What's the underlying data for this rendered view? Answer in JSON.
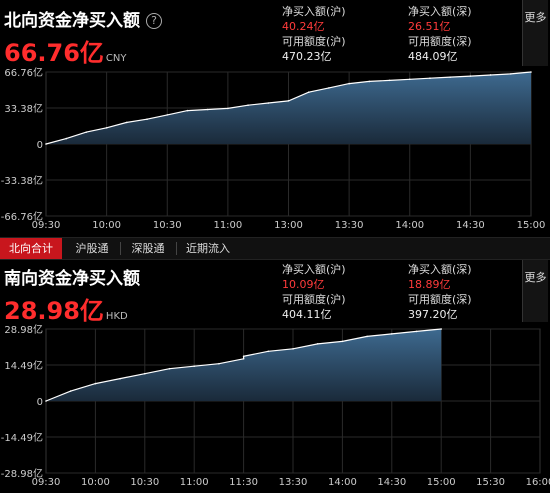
{
  "north": {
    "title": "北向资金净买入额",
    "value": "66.76亿",
    "currency": "CNY",
    "net_sh_label": "净买入额(沪)",
    "net_sh": "40.24亿",
    "net_sz_label": "净买入额(深)",
    "net_sz": "26.51亿",
    "avail_sh_label": "可用额度(沪)",
    "avail_sh": "470.23亿",
    "avail_sz_label": "可用额度(深)",
    "avail_sz": "484.09亿",
    "more": "更多"
  },
  "tabs": [
    "北向合计",
    "沪股通",
    "深股通",
    "近期流入"
  ],
  "south": {
    "title": "南向资金净买入额",
    "value": "28.98亿",
    "currency": "HKD",
    "net_sh_label": "净买入额(沪)",
    "net_sh": "10.09亿",
    "net_sz_label": "净买入额(深)",
    "net_sz": "18.89亿",
    "avail_sh_label": "可用额度(沪)",
    "avail_sh": "404.11亿",
    "avail_sz_label": "可用额度(深)",
    "avail_sz": "397.20亿",
    "more": "更多"
  },
  "colors": {
    "line": "#ffffff",
    "fill_top": "#3e6a90",
    "fill_bottom": "#1a2a3a",
    "grid": "#2a2a2a",
    "red": "#ff2d2d"
  },
  "chart_data": [
    {
      "type": "area",
      "ylim": [
        -66.76,
        66.76
      ],
      "yticks": [
        66.76,
        33.38,
        0,
        -33.38,
        -66.76
      ],
      "ytick_labels": [
        "66.76亿",
        "33.38亿",
        "0",
        "-33.38亿",
        "-66.76亿"
      ],
      "xtick_labels": [
        "09:30",
        "10:00",
        "10:30",
        "11:00",
        "13:00",
        "13:30",
        "14:00",
        "14:30",
        "15:00"
      ],
      "x": [
        "09:30",
        "09:40",
        "09:50",
        "10:00",
        "10:10",
        "10:20",
        "10:30",
        "10:40",
        "10:50",
        "11:00",
        "11:10",
        "11:20",
        "11:30",
        "13:10",
        "13:20",
        "13:30",
        "13:40",
        "13:50",
        "14:00",
        "14:10",
        "14:20",
        "14:30",
        "14:40",
        "14:50",
        "15:00"
      ],
      "values": [
        0,
        5,
        11,
        15,
        20,
        23,
        27,
        31,
        32,
        33,
        36,
        38,
        40,
        48,
        52,
        56,
        58,
        59,
        60,
        61,
        62,
        63,
        64,
        65,
        66.76
      ]
    },
    {
      "type": "area",
      "ylim": [
        -28.98,
        28.98
      ],
      "yticks": [
        28.98,
        14.49,
        0,
        -14.49,
        -28.98
      ],
      "ytick_labels": [
        "28.98亿",
        "14.49亿",
        "0",
        "-14.49亿",
        "-28.98亿"
      ],
      "xtick_labels": [
        "09:30",
        "10:00",
        "10:30",
        "11:00",
        "11:30",
        "13:30",
        "14:00",
        "14:30",
        "15:00",
        "15:30",
        "16:00"
      ],
      "x": [
        "09:30",
        "09:45",
        "10:00",
        "10:15",
        "10:30",
        "10:45",
        "11:00",
        "11:15",
        "11:30",
        "13:00",
        "13:15",
        "13:30",
        "13:45",
        "14:00",
        "14:15",
        "14:30",
        "14:45",
        "15:00"
      ],
      "values": [
        0,
        4,
        7,
        9,
        11,
        13,
        14,
        15,
        17,
        18,
        20,
        21,
        23,
        24,
        26,
        27,
        28,
        28.98
      ]
    }
  ]
}
